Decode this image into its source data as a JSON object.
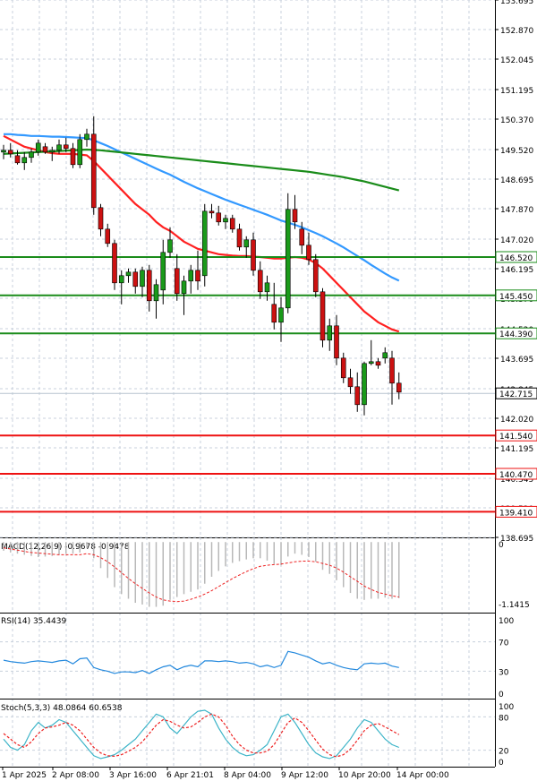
{
  "chart_data": [
    {
      "type": "candlestick",
      "panel": "price",
      "ylim": [
        138.695,
        153.695
      ],
      "y_ticks": [
        "153.695",
        "152.870",
        "152.045",
        "151.195",
        "150.370",
        "149.520",
        "148.695",
        "147.870",
        "147.020",
        "146.195",
        "145.370",
        "144.520",
        "143.695",
        "142.845",
        "142.020",
        "141.195",
        "140.345",
        "139.520",
        "138.695"
      ],
      "x_labels": [
        "1 Apr 2025",
        "2 Apr 08:00",
        "3 Apr 16:00",
        "6 Apr 21:01",
        "8 Apr 04:00",
        "9 Apr 12:00",
        "10 Apr 20:00",
        "14 Apr 00:00"
      ],
      "candles": [
        {
          "o": 149.45,
          "h": 149.65,
          "l": 149.25,
          "c": 149.5
        },
        {
          "o": 149.5,
          "h": 149.7,
          "l": 149.3,
          "c": 149.4
        },
        {
          "o": 149.35,
          "h": 149.5,
          "l": 149.1,
          "c": 149.15
        },
        {
          "o": 149.15,
          "h": 149.45,
          "l": 148.95,
          "c": 149.3
        },
        {
          "o": 149.3,
          "h": 149.55,
          "l": 149.15,
          "c": 149.45
        },
        {
          "o": 149.45,
          "h": 149.8,
          "l": 149.35,
          "c": 149.7
        },
        {
          "o": 149.6,
          "h": 149.7,
          "l": 149.4,
          "c": 149.45
        },
        {
          "o": 149.45,
          "h": 149.6,
          "l": 149.2,
          "c": 149.5
        },
        {
          "o": 149.5,
          "h": 149.8,
          "l": 149.4,
          "c": 149.65
        },
        {
          "o": 149.65,
          "h": 149.85,
          "l": 149.45,
          "c": 149.55
        },
        {
          "o": 149.55,
          "h": 149.7,
          "l": 149.0,
          "c": 149.1
        },
        {
          "o": 149.1,
          "h": 149.95,
          "l": 149.0,
          "c": 149.8
        },
        {
          "o": 149.8,
          "h": 150.1,
          "l": 149.6,
          "c": 149.95
        },
        {
          "o": 149.95,
          "h": 150.45,
          "l": 147.7,
          "c": 147.9
        },
        {
          "o": 147.9,
          "h": 148.0,
          "l": 147.1,
          "c": 147.3
        },
        {
          "o": 147.3,
          "h": 147.45,
          "l": 146.8,
          "c": 146.9
        },
        {
          "o": 146.9,
          "h": 147.0,
          "l": 145.6,
          "c": 145.8
        },
        {
          "o": 145.8,
          "h": 146.15,
          "l": 145.2,
          "c": 146.0
        },
        {
          "o": 146.0,
          "h": 146.2,
          "l": 145.8,
          "c": 146.1
        },
        {
          "o": 146.1,
          "h": 146.2,
          "l": 145.5,
          "c": 145.7
        },
        {
          "o": 145.7,
          "h": 146.25,
          "l": 145.4,
          "c": 146.15
        },
        {
          "o": 146.15,
          "h": 146.3,
          "l": 145.0,
          "c": 145.3
        },
        {
          "o": 145.3,
          "h": 145.9,
          "l": 144.8,
          "c": 145.75
        },
        {
          "o": 145.6,
          "h": 147.0,
          "l": 145.2,
          "c": 146.65
        },
        {
          "o": 146.65,
          "h": 147.35,
          "l": 146.5,
          "c": 147.0
        },
        {
          "o": 146.2,
          "h": 146.6,
          "l": 145.3,
          "c": 145.5
        },
        {
          "o": 145.5,
          "h": 146.0,
          "l": 144.9,
          "c": 145.85
        },
        {
          "o": 145.85,
          "h": 146.3,
          "l": 145.5,
          "c": 146.15
        },
        {
          "o": 146.15,
          "h": 146.7,
          "l": 145.6,
          "c": 145.85
        },
        {
          "o": 146.0,
          "h": 148.0,
          "l": 145.7,
          "c": 147.8
        },
        {
          "o": 147.8,
          "h": 148.0,
          "l": 147.6,
          "c": 147.75
        },
        {
          "o": 147.75,
          "h": 147.95,
          "l": 147.4,
          "c": 147.5
        },
        {
          "o": 147.5,
          "h": 147.7,
          "l": 147.3,
          "c": 147.6
        },
        {
          "o": 147.6,
          "h": 147.7,
          "l": 147.2,
          "c": 147.3
        },
        {
          "o": 147.3,
          "h": 147.45,
          "l": 146.7,
          "c": 146.8
        },
        {
          "o": 146.8,
          "h": 147.1,
          "l": 146.5,
          "c": 147.0
        },
        {
          "o": 147.0,
          "h": 147.2,
          "l": 146.0,
          "c": 146.15
        },
        {
          "o": 146.15,
          "h": 146.4,
          "l": 145.35,
          "c": 145.55
        },
        {
          "o": 145.55,
          "h": 146.0,
          "l": 145.3,
          "c": 145.8
        },
        {
          "o": 145.2,
          "h": 145.8,
          "l": 144.5,
          "c": 144.7
        },
        {
          "o": 144.7,
          "h": 145.4,
          "l": 144.15,
          "c": 145.1
        },
        {
          "o": 145.1,
          "h": 148.3,
          "l": 144.95,
          "c": 147.85
        },
        {
          "o": 147.85,
          "h": 148.25,
          "l": 147.3,
          "c": 147.5
        },
        {
          "o": 147.3,
          "h": 147.5,
          "l": 146.6,
          "c": 146.85
        },
        {
          "o": 146.85,
          "h": 147.2,
          "l": 146.3,
          "c": 146.45
        },
        {
          "o": 146.45,
          "h": 146.6,
          "l": 145.4,
          "c": 145.55
        },
        {
          "o": 145.55,
          "h": 145.65,
          "l": 144.0,
          "c": 144.2
        },
        {
          "o": 144.2,
          "h": 144.8,
          "l": 143.9,
          "c": 144.6
        },
        {
          "o": 144.6,
          "h": 144.9,
          "l": 143.5,
          "c": 143.7
        },
        {
          "o": 143.7,
          "h": 143.85,
          "l": 143.0,
          "c": 143.15
        },
        {
          "o": 143.15,
          "h": 143.4,
          "l": 142.7,
          "c": 142.9
        },
        {
          "o": 142.9,
          "h": 143.3,
          "l": 142.2,
          "c": 142.4
        },
        {
          "o": 142.4,
          "h": 143.6,
          "l": 142.1,
          "c": 143.55
        },
        {
          "o": 143.55,
          "h": 144.2,
          "l": 143.5,
          "c": 143.6
        },
        {
          "o": 143.6,
          "h": 143.7,
          "l": 143.4,
          "c": 143.5
        },
        {
          "o": 143.7,
          "h": 144.0,
          "l": 143.55,
          "c": 143.85
        },
        {
          "o": 143.7,
          "h": 143.9,
          "l": 142.4,
          "c": 143.0
        },
        {
          "o": 143.0,
          "h": 143.3,
          "l": 142.55,
          "c": 142.75
        }
      ],
      "moving_averages": [
        {
          "color": "#ff2020",
          "values": [
            149.9,
            149.8,
            149.7,
            149.6,
            149.55,
            149.5,
            149.45,
            149.42,
            149.4,
            149.4,
            149.4,
            149.38,
            149.36,
            149.2,
            149.0,
            148.8,
            148.6,
            148.4,
            148.2,
            148.0,
            147.85,
            147.7,
            147.5,
            147.35,
            147.25,
            147.1,
            146.95,
            146.85,
            146.75,
            146.7,
            146.65,
            146.6,
            146.58,
            146.56,
            146.55,
            146.55,
            146.53,
            146.52,
            146.5,
            146.48,
            146.48,
            146.5,
            146.52,
            146.5,
            146.45,
            146.35,
            146.2,
            146.0,
            145.8,
            145.6,
            145.4,
            145.2,
            145.0,
            144.85,
            144.7,
            144.6,
            144.5,
            144.44
          ]
        },
        {
          "color": "#3399ff",
          "values": [
            149.95,
            149.95,
            149.93,
            149.92,
            149.9,
            149.9,
            149.89,
            149.88,
            149.88,
            149.87,
            149.86,
            149.85,
            149.84,
            149.78,
            149.7,
            149.62,
            149.53,
            149.44,
            149.35,
            149.26,
            149.17,
            149.08,
            148.99,
            148.9,
            148.82,
            148.72,
            148.62,
            148.53,
            148.44,
            148.36,
            148.28,
            148.2,
            148.12,
            148.05,
            147.98,
            147.91,
            147.84,
            147.77,
            147.7,
            147.62,
            147.54,
            147.48,
            147.42,
            147.35,
            147.27,
            147.19,
            147.1,
            147.0,
            146.9,
            146.79,
            146.67,
            146.55,
            146.43,
            146.3,
            146.18,
            146.06,
            145.95,
            145.86
          ]
        },
        {
          "color": "#1a8c1a",
          "values": [
            149.4,
            149.41,
            149.42,
            149.43,
            149.44,
            149.45,
            149.46,
            149.47,
            149.48,
            149.49,
            149.5,
            149.51,
            149.52,
            149.51,
            149.5,
            149.48,
            149.46,
            149.44,
            149.42,
            149.4,
            149.38,
            149.36,
            149.34,
            149.32,
            149.3,
            149.28,
            149.26,
            149.24,
            149.22,
            149.2,
            149.18,
            149.16,
            149.14,
            149.12,
            149.1,
            149.08,
            149.06,
            149.04,
            149.02,
            149.0,
            148.98,
            148.96,
            148.94,
            148.92,
            148.9,
            148.87,
            148.84,
            148.81,
            148.78,
            148.75,
            148.71,
            148.67,
            148.63,
            148.58,
            148.53,
            148.48,
            148.43,
            148.38
          ]
        }
      ],
      "levels": [
        {
          "label": "146.520",
          "value": 146.52,
          "color": "#1a8c1a"
        },
        {
          "label": "145.450",
          "value": 145.45,
          "color": "#1a8c1a"
        },
        {
          "label": "144.390",
          "value": 144.39,
          "color": "#1a8c1a"
        },
        {
          "label": "141.540",
          "value": 141.54,
          "color": "#ee1111"
        },
        {
          "label": "140.470",
          "value": 140.47,
          "color": "#ee1111"
        },
        {
          "label": "139.410",
          "value": 139.41,
          "color": "#ee1111"
        }
      ],
      "current_price": "142.715",
      "current_price_value": 142.715
    },
    {
      "type": "bar",
      "panel": "macd",
      "title": "MACD(12,26,9) -0.9678 -0.9478",
      "y_ticks": [
        "0",
        "-1.1415"
      ],
      "ylim": [
        -1.22,
        0.05
      ],
      "values": [
        -0.15,
        -0.18,
        -0.2,
        -0.22,
        -0.24,
        -0.26,
        -0.25,
        -0.24,
        -0.22,
        -0.2,
        -0.2,
        -0.18,
        -0.1,
        -0.28,
        -0.45,
        -0.62,
        -0.78,
        -0.9,
        -0.98,
        -1.05,
        -1.08,
        -1.12,
        -1.12,
        -1.1,
        -1.0,
        -0.95,
        -0.9,
        -0.86,
        -0.82,
        -0.72,
        -0.6,
        -0.5,
        -0.42,
        -0.36,
        -0.33,
        -0.3,
        -0.28,
        -0.28,
        -0.32,
        -0.38,
        -0.4,
        -0.25,
        -0.2,
        -0.22,
        -0.26,
        -0.34,
        -0.48,
        -0.55,
        -0.66,
        -0.78,
        -0.88,
        -0.98,
        -1.0,
        -0.98,
        -0.98,
        -0.96,
        -0.98,
        -0.97
      ],
      "signal": [
        -0.1,
        -0.12,
        -0.14,
        -0.16,
        -0.18,
        -0.19,
        -0.2,
        -0.21,
        -0.22,
        -0.22,
        -0.22,
        -0.22,
        -0.2,
        -0.22,
        -0.27,
        -0.34,
        -0.43,
        -0.53,
        -0.63,
        -0.72,
        -0.8,
        -0.88,
        -0.95,
        -1.0,
        -1.02,
        -1.03,
        -1.02,
        -0.99,
        -0.95,
        -0.9,
        -0.84,
        -0.77,
        -0.7,
        -0.63,
        -0.57,
        -0.51,
        -0.46,
        -0.42,
        -0.4,
        -0.39,
        -0.38,
        -0.36,
        -0.34,
        -0.33,
        -0.33,
        -0.34,
        -0.37,
        -0.4,
        -0.45,
        -0.52,
        -0.6,
        -0.68,
        -0.76,
        -0.82,
        -0.87,
        -0.9,
        -0.93,
        -0.95
      ]
    },
    {
      "type": "line",
      "panel": "rsi",
      "title": "RSI(14) 35.4439",
      "y_ticks": [
        "100",
        "70",
        "30",
        "0"
      ],
      "ylim": [
        0,
        100
      ],
      "values": [
        45,
        43,
        42,
        41,
        43,
        44,
        43,
        42,
        44,
        45,
        40,
        47,
        48,
        35,
        32,
        30,
        27,
        29,
        29,
        28,
        31,
        27,
        32,
        36,
        38,
        32,
        36,
        38,
        36,
        44,
        44,
        43,
        44,
        43,
        41,
        42,
        40,
        36,
        38,
        35,
        38,
        57,
        55,
        52,
        49,
        44,
        40,
        42,
        38,
        35,
        33,
        32,
        40,
        41,
        40,
        41,
        37,
        35
      ]
    },
    {
      "type": "line",
      "panel": "stochastic",
      "title": "Stoch(5,3,3) 48.0864 60.6538",
      "y_ticks": [
        "100",
        "80",
        "20",
        "0"
      ],
      "ylim": [
        0,
        100
      ],
      "series": [
        {
          "color": "#3cb4c8",
          "values": [
            40,
            25,
            20,
            30,
            55,
            70,
            60,
            65,
            75,
            70,
            55,
            40,
            25,
            10,
            5,
            8,
            12,
            20,
            30,
            40,
            55,
            70,
            85,
            80,
            60,
            50,
            65,
            80,
            90,
            92,
            85,
            60,
            40,
            25,
            15,
            10,
            12,
            20,
            30,
            55,
            80,
            85,
            70,
            50,
            30,
            15,
            8,
            5,
            10,
            25,
            40,
            60,
            75,
            70,
            55,
            40,
            30,
            25
          ]
        },
        {
          "color": "#ee2222",
          "values": [
            50,
            40,
            30,
            25,
            35,
            50,
            60,
            62,
            65,
            70,
            65,
            55,
            40,
            25,
            15,
            10,
            9,
            12,
            18,
            25,
            35,
            50,
            65,
            75,
            72,
            65,
            60,
            62,
            70,
            80,
            85,
            80,
            65,
            45,
            30,
            20,
            15,
            15,
            18,
            30,
            50,
            70,
            78,
            70,
            55,
            38,
            22,
            12,
            8,
            12,
            22,
            38,
            55,
            65,
            68,
            62,
            55,
            48
          ]
        }
      ]
    }
  ]
}
